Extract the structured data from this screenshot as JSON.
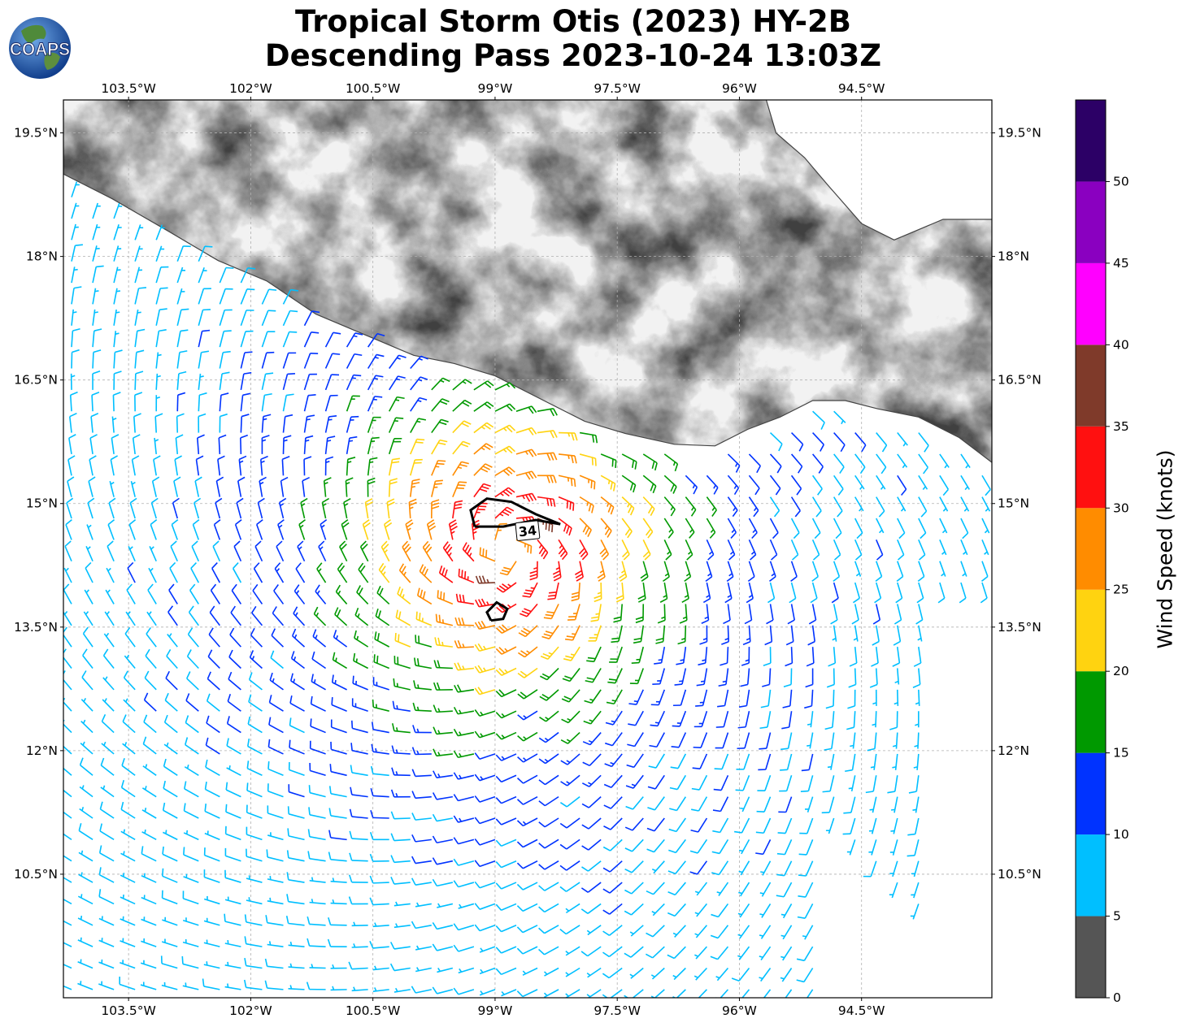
{
  "title": {
    "line1": "Tropical Storm Otis (2023) HY-2B",
    "line2": "Descending Pass 2023-10-24 13:03Z"
  },
  "logo": {
    "text": "COAPS",
    "icon": "globe-icon"
  },
  "map": {
    "lon_range": [
      -104.3,
      -92.9
    ],
    "lat_range": [
      9.0,
      19.9
    ],
    "lon_ticks": [
      "103.5°W",
      "102°W",
      "100.5°W",
      "99°W",
      "97.5°W",
      "96°W",
      "94.5°W"
    ],
    "lat_ticks": [
      "19.5°N",
      "18°N",
      "16.5°N",
      "15°N",
      "13.5°N",
      "12°N",
      "10.5°N"
    ],
    "gridlines": true,
    "storm_center": {
      "lon": -98.85,
      "lat": 14.45
    },
    "contour_label": "34",
    "contour_color": "#000000"
  },
  "colorbar": {
    "label": "Wind Speed (knots)",
    "ticks": [
      "0",
      "5",
      "10",
      "15",
      "20",
      "25",
      "30",
      "35",
      "40",
      "45",
      "50"
    ],
    "bins": [
      {
        "min": 0,
        "max": 5,
        "color": "#555555"
      },
      {
        "min": 5,
        "max": 10,
        "color": "#00bfff"
      },
      {
        "min": 10,
        "max": 15,
        "color": "#0033ff"
      },
      {
        "min": 15,
        "max": 20,
        "color": "#009900"
      },
      {
        "min": 20,
        "max": 25,
        "color": "#ffd310"
      },
      {
        "min": 25,
        "max": 30,
        "color": "#ff8c00"
      },
      {
        "min": 30,
        "max": 35,
        "color": "#ff1010"
      },
      {
        "min": 35,
        "max": 40,
        "color": "#7f3a2a"
      },
      {
        "min": 40,
        "max": 45,
        "color": "#ff00ff"
      },
      {
        "min": 45,
        "max": 50,
        "color": "#8a00c0"
      },
      {
        "min": 50,
        "max": 55,
        "color": "#2c0066"
      }
    ]
  }
}
